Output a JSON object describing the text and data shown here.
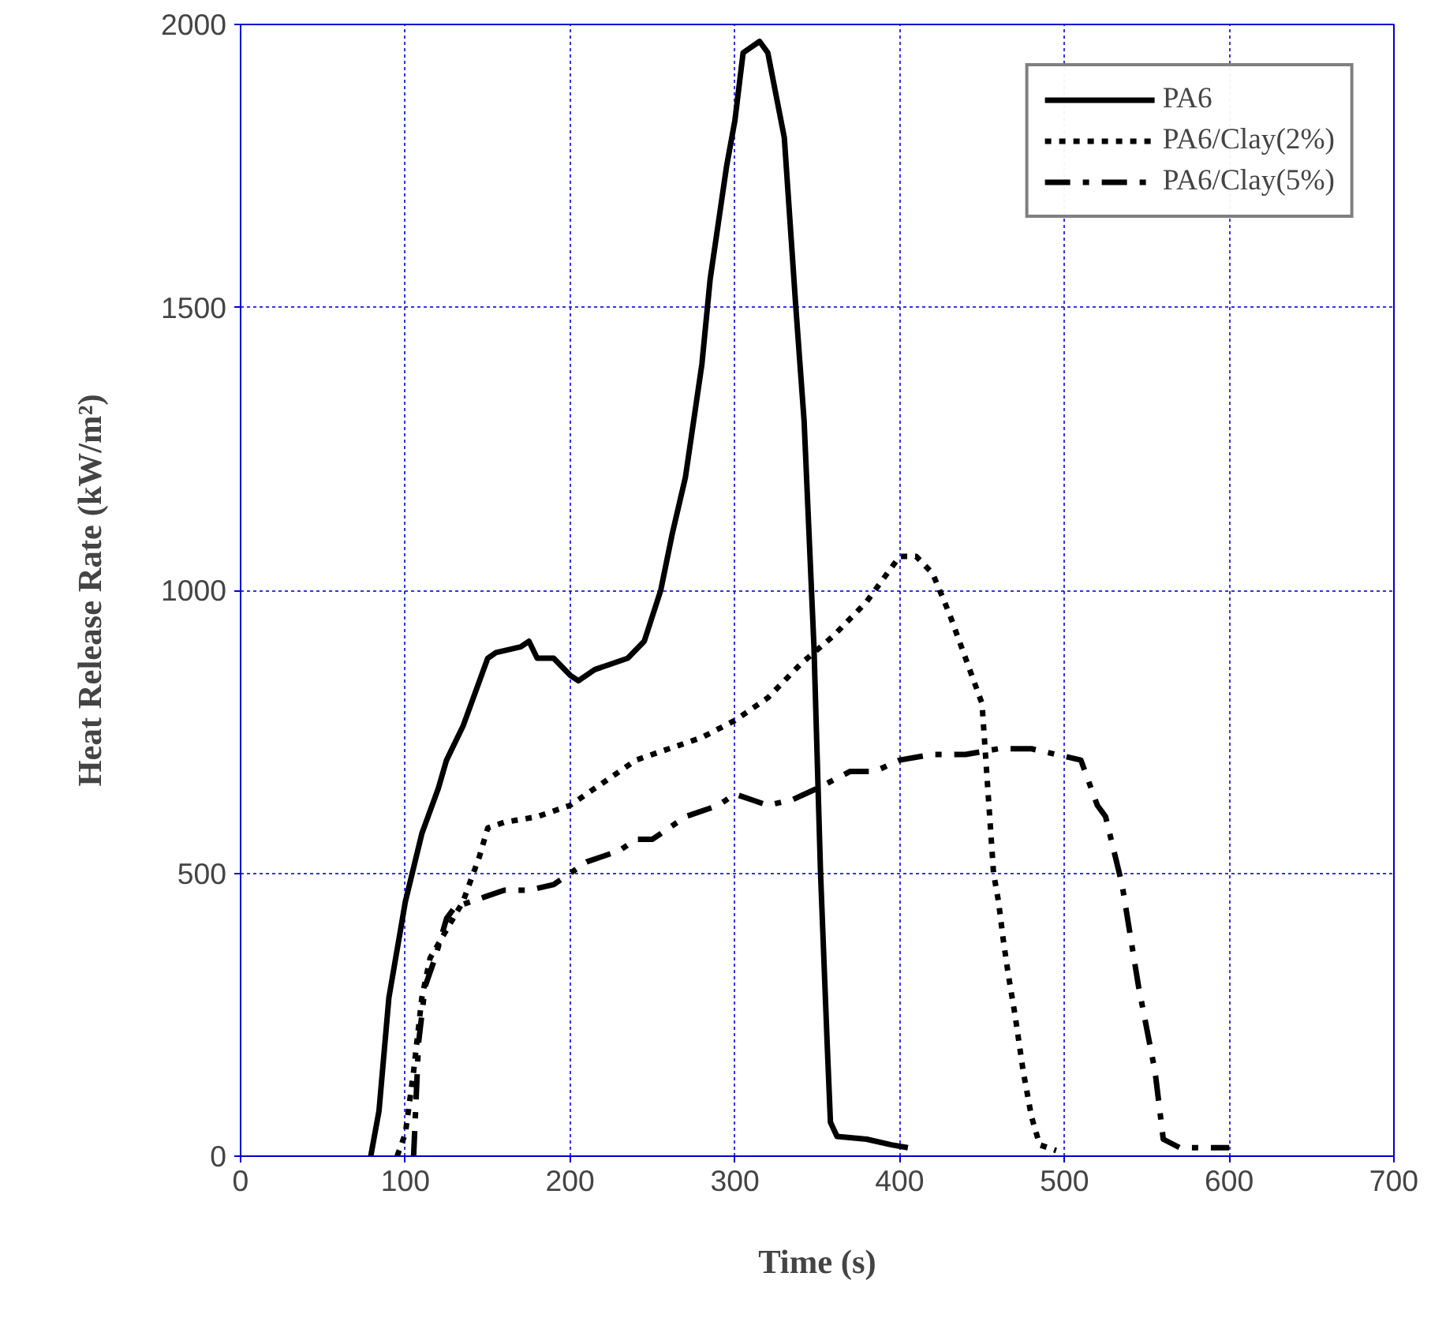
{
  "chart_data": {
    "type": "line",
    "xlabel": "Time (s)",
    "ylabel": "Heat Release Rate (kW/m²)",
    "xlim": [
      0,
      700
    ],
    "ylim": [
      0,
      2000
    ],
    "xticks": [
      0,
      100,
      200,
      300,
      400,
      500,
      600,
      700
    ],
    "yticks": [
      0,
      500,
      1000,
      1500,
      2000
    ],
    "grid": true,
    "legend": "top right",
    "marker": "none",
    "series": [
      {
        "name": "PA6",
        "color": "#000000",
        "line_style": "solid",
        "x": [
          79,
          84,
          90,
          100,
          110,
          120,
          125,
          135,
          145,
          150,
          155,
          170,
          175,
          180,
          190,
          200,
          205,
          215,
          225,
          235,
          245,
          255,
          262,
          270,
          280,
          285,
          290,
          295,
          300,
          305,
          310,
          315,
          320,
          330,
          337,
          342,
          348,
          352,
          356,
          358,
          362,
          380,
          395,
          405
        ],
        "values": [
          0,
          80,
          280,
          450,
          570,
          650,
          700,
          760,
          840,
          880,
          890,
          900,
          910,
          880,
          880,
          850,
          840,
          860,
          870,
          880,
          910,
          1000,
          1100,
          1200,
          1400,
          1550,
          1650,
          1750,
          1830,
          1950,
          1960,
          1970,
          1950,
          1800,
          1500,
          1300,
          900,
          500,
          200,
          60,
          35,
          30,
          20,
          15
        ]
      },
      {
        "name": "PA6/Clay(2%)",
        "color": "#000000",
        "line_style": "dotted",
        "x": [
          95,
          100,
          105,
          110,
          115,
          125,
          135,
          145,
          150,
          160,
          180,
          200,
          220,
          240,
          260,
          280,
          300,
          320,
          340,
          360,
          380,
          400,
          410,
          420,
          430,
          440,
          450,
          457,
          460,
          463,
          466,
          470,
          475,
          480,
          485,
          495
        ],
        "values": [
          0,
          40,
          150,
          280,
          350,
          400,
          450,
          530,
          580,
          590,
          600,
          620,
          660,
          700,
          720,
          740,
          770,
          810,
          870,
          920,
          980,
          1060,
          1060,
          1030,
          960,
          880,
          800,
          500,
          450,
          380,
          320,
          250,
          150,
          70,
          20,
          10
        ]
      },
      {
        "name": "PA6/Clay(5%)",
        "color": "#000000",
        "line_style": "dashdot",
        "x": [
          105,
          108,
          112,
          118,
          125,
          130,
          140,
          150,
          160,
          175,
          190,
          200,
          210,
          230,
          240,
          250,
          270,
          290,
          300,
          310,
          320,
          335,
          350,
          370,
          385,
          400,
          420,
          440,
          460,
          480,
          510,
          520,
          525,
          535,
          545,
          555,
          560,
          570,
          600
        ],
        "values": [
          0,
          200,
          300,
          350,
          420,
          440,
          450,
          460,
          470,
          470,
          480,
          500,
          520,
          540,
          560,
          560,
          600,
          620,
          640,
          630,
          620,
          630,
          650,
          680,
          680,
          700,
          710,
          710,
          720,
          720,
          700,
          620,
          600,
          480,
          300,
          150,
          30,
          15,
          15
        ]
      }
    ]
  }
}
